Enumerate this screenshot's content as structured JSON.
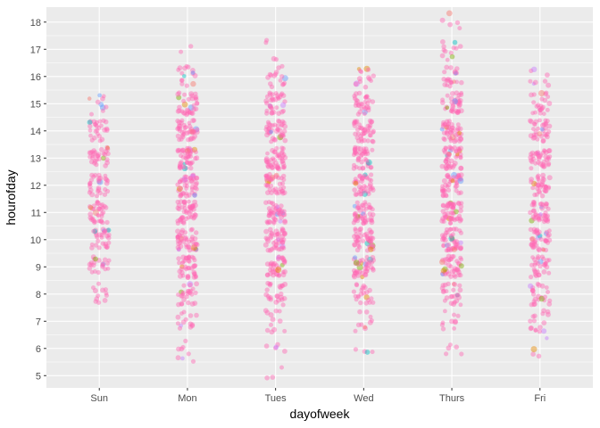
{
  "chart_data": {
    "type": "scatter",
    "subtype": "jitter",
    "title": "",
    "xlabel": "dayofweek",
    "ylabel": "hourofday",
    "categories": [
      "Sun",
      "Mon",
      "Tues",
      "Wed",
      "Thurs",
      "Fri"
    ],
    "y_ticks": [
      5,
      6,
      7,
      8,
      9,
      10,
      11,
      12,
      13,
      14,
      15,
      16,
      17,
      18
    ],
    "ylim": [
      4.55,
      18.55
    ],
    "grid": true,
    "legend": "none",
    "point_alpha": 0.45,
    "colors": {
      "panel_background": "#EBEBEB",
      "gridline": "#FFFFFF",
      "dominant_point": "#FF69B4",
      "minor_points": [
        "#F8766D",
        "#7CAE00",
        "#00BFC4",
        "#619CFF",
        "#C77CFF",
        "#E58700"
      ]
    },
    "hour_distribution": {
      "Sun": {
        "min": 7.0,
        "max": 15.4,
        "hours": [
          8,
          9,
          10,
          11,
          12,
          13,
          14,
          15
        ],
        "counts": [
          12,
          22,
          30,
          34,
          30,
          30,
          26,
          10
        ]
      },
      "Mon": {
        "min": 5.5,
        "max": 17.3,
        "hours": [
          5,
          6,
          7,
          8,
          9,
          10,
          11,
          12,
          13,
          14,
          15,
          16,
          17
        ],
        "counts": [
          2,
          6,
          14,
          26,
          40,
          46,
          48,
          44,
          46,
          42,
          34,
          16,
          2
        ]
      },
      "Tues": {
        "min": 4.9,
        "max": 17.4,
        "hours": [
          4,
          5,
          6,
          7,
          8,
          9,
          10,
          11,
          12,
          13,
          14,
          15,
          16,
          17
        ],
        "counts": [
          1,
          2,
          5,
          12,
          24,
          38,
          44,
          46,
          40,
          44,
          40,
          34,
          16,
          4
        ]
      },
      "Wed": {
        "min": 5.8,
        "max": 16.3,
        "hours": [
          5,
          6,
          7,
          8,
          9,
          10,
          11,
          12,
          13,
          14,
          15,
          16
        ],
        "counts": [
          1,
          3,
          10,
          22,
          42,
          46,
          48,
          40,
          42,
          40,
          30,
          14
        ]
      },
      "Thurs": {
        "min": 5.7,
        "max": 18.4,
        "hours": [
          5,
          6,
          7,
          8,
          9,
          10,
          11,
          12,
          13,
          14,
          15,
          16,
          17,
          18
        ],
        "counts": [
          1,
          4,
          10,
          26,
          40,
          48,
          50,
          44,
          46,
          44,
          38,
          22,
          12,
          5
        ]
      },
      "Fri": {
        "min": 5.6,
        "max": 16.5,
        "hours": [
          5,
          6,
          7,
          8,
          9,
          10,
          11,
          12,
          13,
          14,
          15,
          16
        ],
        "counts": [
          1,
          3,
          16,
          24,
          30,
          40,
          40,
          34,
          38,
          34,
          24,
          8
        ]
      }
    }
  }
}
